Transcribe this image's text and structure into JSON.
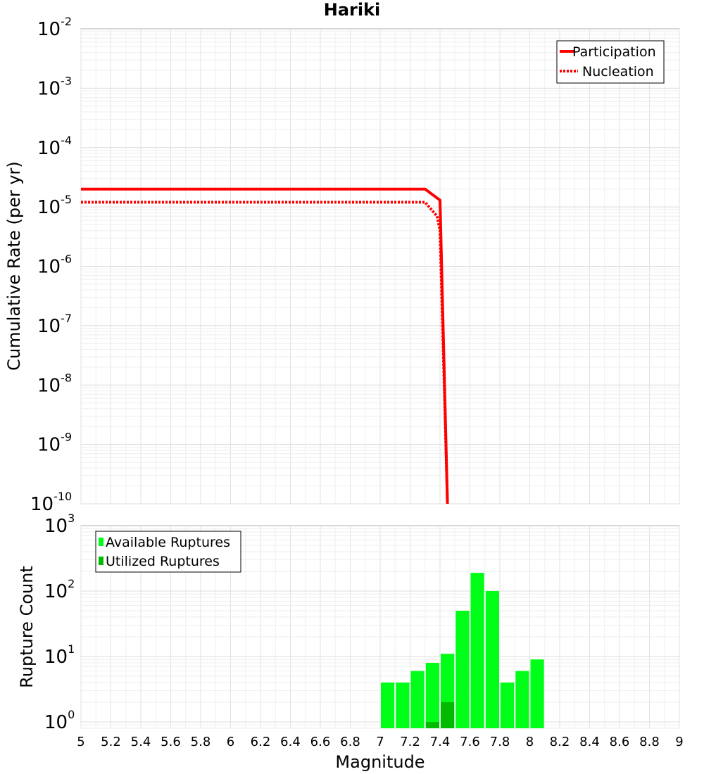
{
  "chart_data": [
    {
      "type": "line",
      "title": "Hariki",
      "xlabel": "Magnitude",
      "ylabel": "Cumulative Rate (per yr)",
      "yscale": "log",
      "xlim": [
        5,
        9
      ],
      "ylim": [
        1e-10,
        0.01
      ],
      "y_tick_exponents": [
        -10,
        -9,
        -8,
        -7,
        -6,
        -5,
        -4,
        -3,
        -2
      ],
      "grid": true,
      "legend_position": "top-right",
      "series": [
        {
          "name": "Participation",
          "style": "solid",
          "color": "#ff0000",
          "points": [
            [
              5.0,
              2e-05
            ],
            [
              7.3,
              2e-05
            ],
            [
              7.4,
              1.3e-05
            ],
            [
              7.45,
              1e-10
            ]
          ]
        },
        {
          "name": "Nucleation",
          "style": "dotted",
          "color": "#ff0000",
          "points": [
            [
              5.0,
              1.2e-05
            ],
            [
              7.3,
              1.2e-05
            ],
            [
              7.38,
              7e-06
            ],
            [
              7.4,
              4e-06
            ],
            [
              7.45,
              1e-10
            ]
          ]
        }
      ]
    },
    {
      "type": "bar",
      "xlabel": "Magnitude",
      "ylabel": "Rupture Count",
      "yscale": "log",
      "xlim": [
        5,
        9
      ],
      "ylim": [
        0.8,
        1000
      ],
      "y_tick_exponents": [
        0,
        1,
        2,
        3
      ],
      "x_ticks": [
        "5",
        "5.2",
        "5.4",
        "5.6",
        "5.8",
        "6",
        "6.2",
        "6.4",
        "6.6",
        "6.8",
        "7",
        "7.2",
        "7.4",
        "7.6",
        "7.8",
        "8",
        "8.2",
        "8.4",
        "8.6",
        "8.8",
        "9"
      ],
      "bin_width": 0.1,
      "grid": true,
      "legend_position": "top-left",
      "series": [
        {
          "name": "Available Ruptures",
          "color": "#00ff18",
          "x": [
            7.05,
            7.15,
            7.25,
            7.35,
            7.45,
            7.55,
            7.65,
            7.75,
            7.85,
            7.95,
            8.05
          ],
          "values": [
            4,
            4,
            6,
            8,
            11,
            50,
            190,
            100,
            4,
            6,
            9
          ]
        },
        {
          "name": "Utilized Ruptures",
          "color": "#00bb00",
          "x": [
            7.35,
            7.45
          ],
          "values": [
            1,
            2
          ]
        }
      ]
    }
  ]
}
